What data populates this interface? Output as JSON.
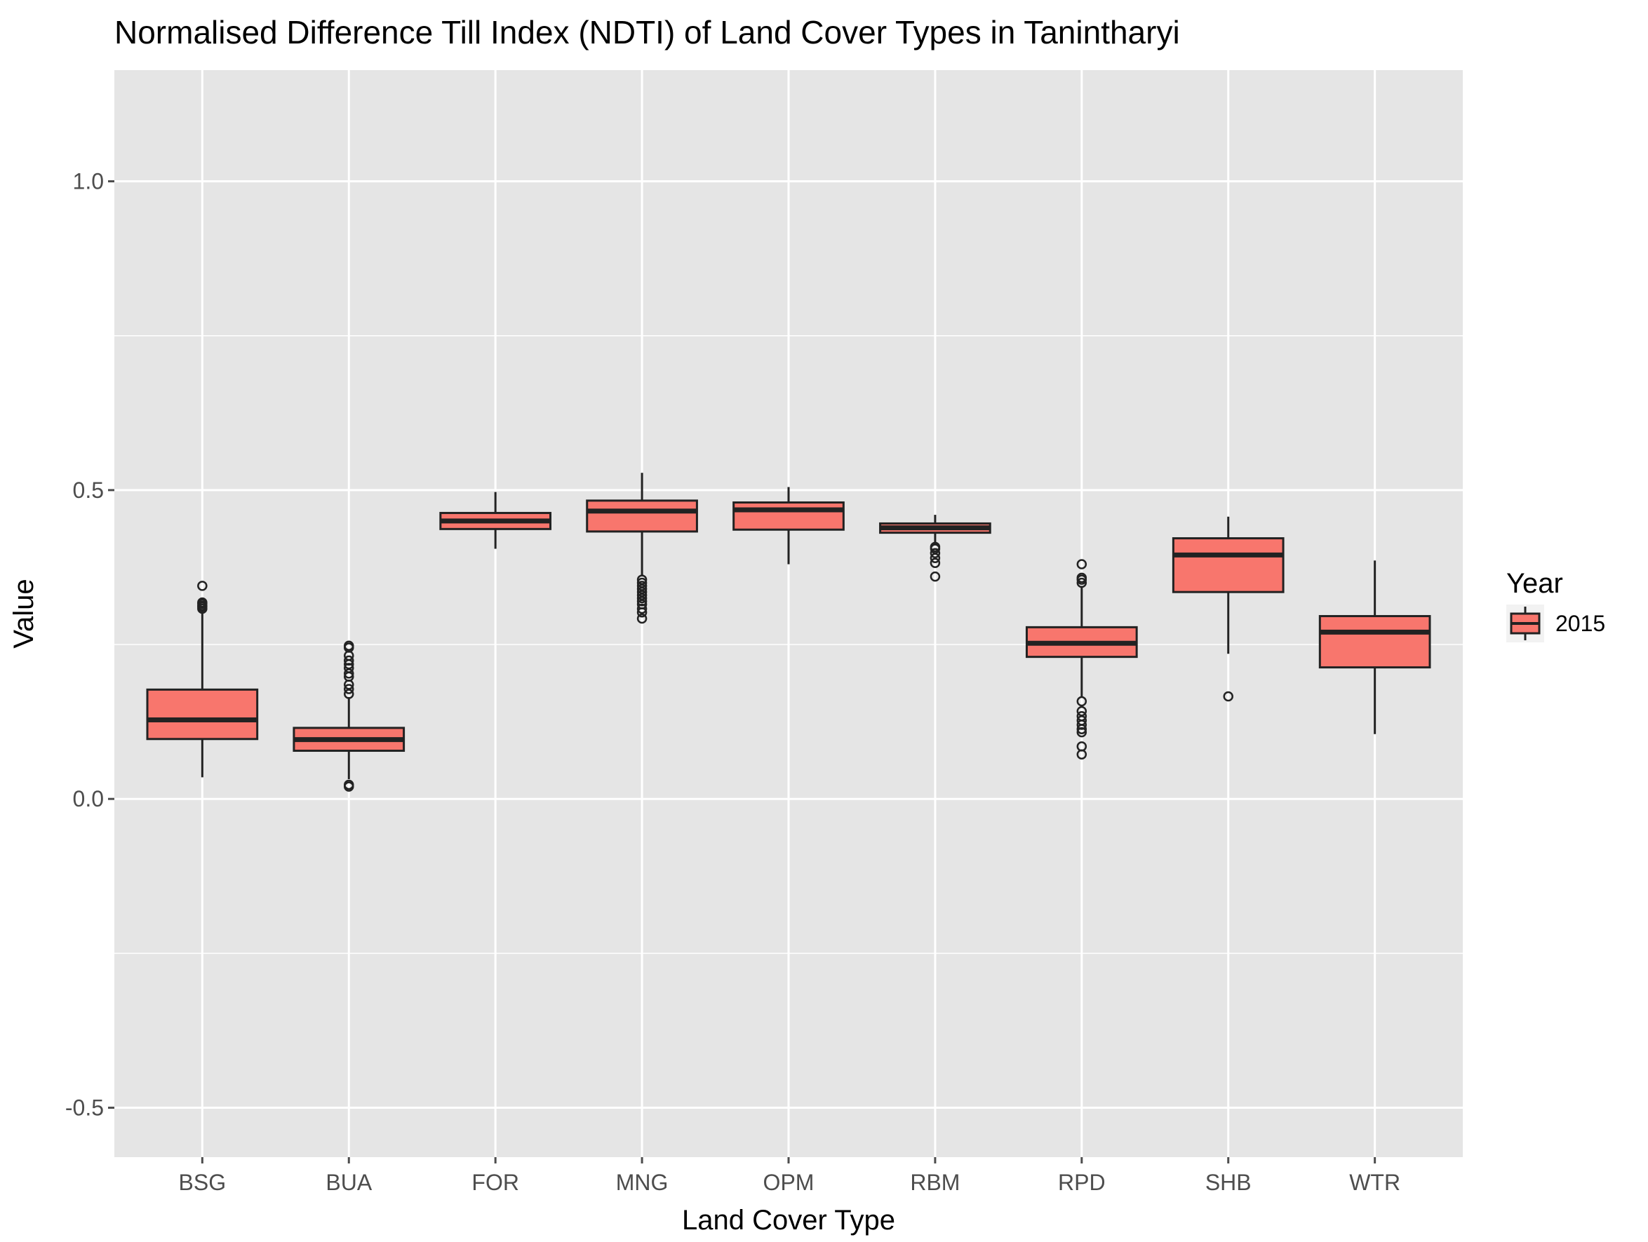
{
  "chart_data": {
    "type": "box",
    "title": "Normalised Difference Till Index (NDTI) of Land Cover Types in Tanintharyi",
    "xlabel": "Land Cover Type",
    "ylabel": "Value",
    "ylim": [
      -0.58,
      1.18
    ],
    "yticks": [
      -0.5,
      0.0,
      0.5,
      1.0
    ],
    "ytick_labels": [
      "-0.5",
      "0.0",
      "0.5",
      "1.0"
    ],
    "grid": true,
    "colors": {
      "panel_bg": "#e5e5e5",
      "grid": "#ffffff",
      "box_fill": "#f8766d",
      "box_line": "#222222",
      "tick": "#4d4d4d"
    },
    "legend": {
      "title": "Year",
      "placement": "right",
      "entries": [
        {
          "label": "2015",
          "color": "#f8766d"
        }
      ]
    },
    "categories": [
      "BSG",
      "BUA",
      "FOR",
      "MNG",
      "OPM",
      "RBM",
      "RPD",
      "SHB",
      "WTR"
    ],
    "series": [
      {
        "name": "2015",
        "boxes": [
          {
            "category": "BSG",
            "whisker_low": 0.035,
            "q1": 0.097,
            "median": 0.128,
            "q3": 0.177,
            "whisker_high": 0.305,
            "outliers": [
              0.308,
              0.311,
              0.313,
              0.316,
              0.318,
              0.345
            ]
          },
          {
            "category": "BUA",
            "whisker_low": 0.032,
            "q1": 0.078,
            "median": 0.096,
            "q3": 0.115,
            "whisker_high": 0.165,
            "outliers": [
              0.02,
              0.023,
              0.17,
              0.178,
              0.185,
              0.198,
              0.203,
              0.212,
              0.218,
              0.224,
              0.232,
              0.245,
              0.248
            ]
          },
          {
            "category": "FOR",
            "whisker_low": 0.405,
            "q1": 0.437,
            "median": 0.45,
            "q3": 0.463,
            "whisker_high": 0.497,
            "outliers": []
          },
          {
            "category": "MNG",
            "whisker_low": 0.36,
            "q1": 0.433,
            "median": 0.466,
            "q3": 0.483,
            "whisker_high": 0.528,
            "outliers": [
              0.292,
              0.302,
              0.308,
              0.315,
              0.32,
              0.325,
              0.33,
              0.335,
              0.34,
              0.345,
              0.35,
              0.355
            ]
          },
          {
            "category": "OPM",
            "whisker_low": 0.38,
            "q1": 0.436,
            "median": 0.468,
            "q3": 0.48,
            "whisker_high": 0.505,
            "outliers": []
          },
          {
            "category": "RBM",
            "whisker_low": 0.412,
            "q1": 0.431,
            "median": 0.439,
            "q3": 0.446,
            "whisker_high": 0.46,
            "outliers": [
              0.36,
              0.382,
              0.39,
              0.398,
              0.405,
              0.408
            ]
          },
          {
            "category": "RPD",
            "whisker_low": 0.165,
            "q1": 0.23,
            "median": 0.252,
            "q3": 0.278,
            "whisker_high": 0.345,
            "outliers": [
              0.072,
              0.085,
              0.108,
              0.113,
              0.12,
              0.127,
              0.134,
              0.142,
              0.158,
              0.35,
              0.355,
              0.358,
              0.38
            ]
          },
          {
            "category": "SHB",
            "whisker_low": 0.235,
            "q1": 0.335,
            "median": 0.395,
            "q3": 0.422,
            "whisker_high": 0.457,
            "outliers": [
              0.166
            ]
          },
          {
            "category": "WTR",
            "whisker_low": 0.105,
            "q1": 0.213,
            "median": 0.27,
            "q3": 0.296,
            "whisker_high": 0.386,
            "outliers": []
          }
        ]
      }
    ]
  }
}
